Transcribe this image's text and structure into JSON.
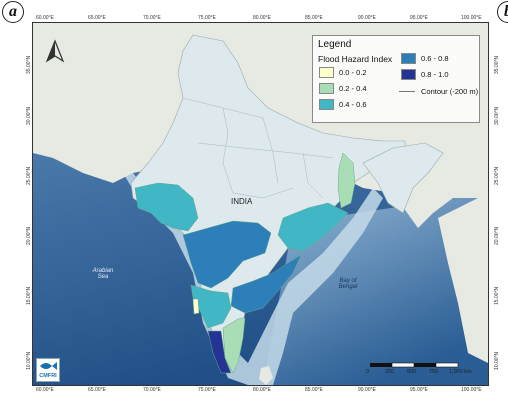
{
  "panel_labels": {
    "left": "a",
    "right": "b"
  },
  "axis_ticks": {
    "top": [
      "60.00°E",
      "65.00°E",
      "70.00°E",
      "75.00°E",
      "80.00°E",
      "85.00°E",
      "90.00°E",
      "95.00°E",
      "100.00°E"
    ],
    "bottom": [
      "60.00°E",
      "65.00°E",
      "70.00°E",
      "75.00°E",
      "80.00°E",
      "85.00°E",
      "90.00°E",
      "95.00°E",
      "100.00°E"
    ],
    "left": [
      "35.00°N",
      "30.00°N",
      "25.00°N",
      "20.00°N",
      "15.00°N",
      "10.00°N"
    ],
    "right": [
      "35.00°N",
      "30.00°N",
      "25.00°N",
      "20.00°N",
      "15.00°N",
      "10.00°N"
    ]
  },
  "legend": {
    "title": "Legend",
    "subtitle": "Flood Hazard Index",
    "classes": [
      {
        "label": "0.0 - 0.2",
        "color": "#ffffcc"
      },
      {
        "label": "0.2 - 0.4",
        "color": "#a8ddb5"
      },
      {
        "label": "0.4 - 0.6",
        "color": "#41b6c4"
      },
      {
        "label": "0.6 - 0.8",
        "color": "#2c7fb8"
      },
      {
        "label": "0.8 - 1.0",
        "color": "#253494"
      }
    ],
    "contour_label": "Contour (-200 m)"
  },
  "map_labels": {
    "country": "INDIA",
    "sea_west": "Arabian\nSea",
    "sea_east": "Bay of\nBengal"
  },
  "scale_bar": {
    "ticks": [
      "0",
      "250",
      "500",
      "750",
      "1,000 km"
    ]
  },
  "logo": {
    "text": "CMFRI"
  },
  "colors": {
    "land_other": "#e6eae3",
    "india_base": "#dde9ec",
    "deep_ocean": "#2a5f93",
    "shallow_ocean": "#b9d3e5"
  }
}
